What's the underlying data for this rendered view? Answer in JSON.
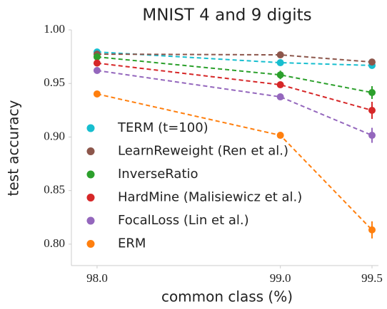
{
  "chart_data": {
    "type": "line",
    "title": "MNIST 4 and 9 digits",
    "x_label": "common class (%)",
    "y_label": "test accuracy",
    "x": [
      98.0,
      99.0,
      99.5
    ],
    "series": [
      {
        "name": "TERM (t=100)",
        "color": "#17becf",
        "values": [
          0.9794,
          0.9694,
          0.9668
        ],
        "errors": [
          0.002,
          0.002,
          0.003
        ]
      },
      {
        "name": "LearnReweight (Ren et al.)",
        "color": "#8c564b",
        "values": [
          0.9774,
          0.9767,
          0.97
        ],
        "errors": [
          0.002,
          0.002,
          0.003
        ]
      },
      {
        "name": "InverseRatio",
        "color": "#2ca02c",
        "values": [
          0.9748,
          0.958,
          0.9415
        ],
        "errors": [
          0.002,
          0.004,
          0.006
        ]
      },
      {
        "name": "HardMine (Malisiewicz et al.)",
        "color": "#d62728",
        "values": [
          0.969,
          0.9488,
          0.9249
        ],
        "errors": [
          0.002,
          0.003,
          0.008
        ]
      },
      {
        "name": "FocalLoss (Lin et al.)",
        "color": "#9467bd",
        "values": [
          0.9621,
          0.9375,
          0.9016
        ],
        "errors": [
          0.002,
          0.003,
          0.007
        ]
      },
      {
        "name": "ERM",
        "color": "#ff7f0e",
        "values": [
          0.9402,
          0.9016,
          0.8133
        ],
        "errors": [
          0.002,
          0.003,
          0.008
        ]
      }
    ],
    "xlim": [
      97.86,
      99.535
    ],
    "ylim": [
      0.78,
      1.0
    ],
    "xticks": [
      {
        "value": 98.0,
        "label": "98.0"
      },
      {
        "value": 99.0,
        "label": "99.0"
      },
      {
        "value": 99.5,
        "label": "99.5"
      }
    ],
    "yticks": [
      {
        "value": 0.8,
        "label": "0.80"
      },
      {
        "value": 0.85,
        "label": "0.85"
      },
      {
        "value": 0.9,
        "label": "0.90"
      },
      {
        "value": 0.95,
        "label": "0.95"
      },
      {
        "value": 1.0,
        "label": "1.00"
      }
    ],
    "legend": "lower left",
    "grid": false
  }
}
